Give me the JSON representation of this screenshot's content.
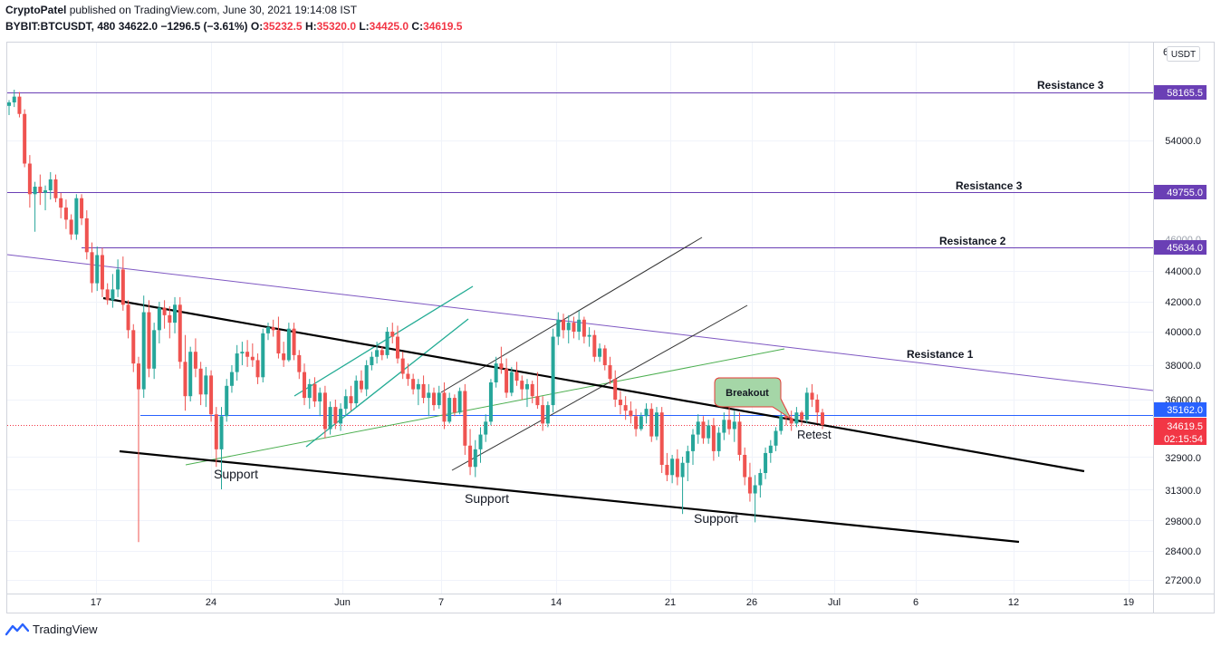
{
  "header": {
    "author": "CryptoPatel",
    "published_text": "published on TradingView.com, June 30, 2021 19:14:08 IST",
    "symbol": "BYBIT:BTCUSDT, 480",
    "last_price": "34622.0",
    "change": "−1296.5 (−3.61%)",
    "open_label": "O:",
    "open": "35232.5",
    "high_label": "H:",
    "high": "35320.0",
    "low_label": "L:",
    "low": "34425.0",
    "close_label": "C:",
    "close": "34619.5"
  },
  "footer": {
    "brand": "TradingView"
  },
  "colors": {
    "up": "#26a69a",
    "down": "#ef5350",
    "purple": "#6a3fb5",
    "blue_line": "#2962ff",
    "red_price": "#f23645"
  },
  "chart_data": {
    "type": "candlestick",
    "currency_badge": "USDT",
    "y_ticks": [
      "54000.0",
      "44000.0",
      "42000.0",
      "40000.0",
      "38000.0",
      "36000.0",
      "32900.0",
      "31300.0",
      "29800.0",
      "28400.0",
      "27200.0"
    ],
    "y_ticks_partial": [
      "6",
      "46000.0"
    ],
    "x_ticks": [
      "17",
      "24",
      "Jun",
      "7",
      "14",
      "21",
      "26",
      "Jul",
      "6",
      "12",
      "19"
    ],
    "price_labels": [
      {
        "text": "58165.5",
        "kind": "purple"
      },
      {
        "text": "49755.0",
        "kind": "purple"
      },
      {
        "text": "45634.0",
        "kind": "purple"
      },
      {
        "text": "35162.0",
        "kind": "blue"
      },
      {
        "text": "34619.5",
        "kind": "red"
      },
      {
        "text": "02:15:54",
        "kind": "red"
      }
    ],
    "annotations": [
      "Resistance 3",
      "Resistance 3",
      "Resistance 2",
      "Resistance 1",
      "Support",
      "Support",
      "Support",
      "Retest",
      "Breakout"
    ],
    "horizontal_levels": [
      58165.5,
      49755.0,
      45634.0,
      35162.0,
      34619.5
    ],
    "candles": [
      [
        57000,
        57500,
        56200,
        57300
      ],
      [
        57300,
        58400,
        56900,
        57800
      ],
      [
        57800,
        58200,
        56000,
        56300
      ],
      [
        56300,
        56700,
        51800,
        52100
      ],
      [
        52100,
        52800,
        48600,
        49600
      ],
      [
        49600,
        50600,
        46800,
        50200
      ],
      [
        50200,
        51200,
        48800,
        49700
      ],
      [
        49700,
        50300,
        48400,
        49900
      ],
      [
        49900,
        51400,
        49200,
        50800
      ],
      [
        50800,
        51200,
        49000,
        49300
      ],
      [
        49300,
        49700,
        47800,
        48600
      ],
      [
        48600,
        49200,
        47000,
        47700
      ],
      [
        47700,
        48100,
        46200,
        46600
      ],
      [
        46600,
        49600,
        46200,
        49300
      ],
      [
        49300,
        49600,
        47300,
        47800
      ],
      [
        47800,
        48400,
        44800,
        45300
      ],
      [
        45300,
        46000,
        42600,
        43200
      ],
      [
        43200,
        45700,
        42700,
        45100
      ],
      [
        45100,
        45600,
        42300,
        42800
      ],
      [
        42800,
        43200,
        41800,
        42100
      ],
      [
        42100,
        43800,
        41600,
        42800
      ],
      [
        42800,
        44800,
        42300,
        44100
      ],
      [
        44100,
        45000,
        41400,
        41800
      ],
      [
        41800,
        42100,
        39600,
        40100
      ],
      [
        40100,
        40500,
        37600,
        38100
      ],
      [
        38100,
        38500,
        28800,
        36600
      ],
      [
        36600,
        42400,
        36100,
        41300
      ],
      [
        41300,
        42100,
        37300,
        37800
      ],
      [
        37800,
        40600,
        37200,
        40100
      ],
      [
        40100,
        42000,
        39300,
        41600
      ],
      [
        41600,
        42100,
        40200,
        41100
      ],
      [
        41100,
        41700,
        39600,
        40600
      ],
      [
        40600,
        42300,
        39900,
        41800
      ],
      [
        41800,
        42300,
        37800,
        38200
      ],
      [
        38200,
        39800,
        35400,
        36200
      ],
      [
        36200,
        39100,
        35900,
        38800
      ],
      [
        38800,
        39600,
        37300,
        37800
      ],
      [
        37800,
        38200,
        35700,
        36300
      ],
      [
        36300,
        37900,
        35600,
        37400
      ],
      [
        37400,
        37700,
        34800,
        35200
      ],
      [
        35200,
        35600,
        32400,
        33300
      ],
      [
        33300,
        35600,
        31300,
        35100
      ],
      [
        35100,
        37200,
        34800,
        36800
      ],
      [
        36800,
        38000,
        36400,
        37600
      ],
      [
        37600,
        39200,
        37100,
        38700
      ],
      [
        38700,
        39400,
        38000,
        38800
      ],
      [
        38800,
        39500,
        37900,
        38500
      ],
      [
        38500,
        39300,
        37900,
        38300
      ],
      [
        38300,
        38700,
        36900,
        37300
      ],
      [
        37300,
        40200,
        37000,
        39900
      ],
      [
        39900,
        40600,
        39500,
        40300
      ],
      [
        40300,
        40800,
        39700,
        40100
      ],
      [
        40100,
        41000,
        38400,
        38700
      ],
      [
        38700,
        39400,
        37900,
        38300
      ],
      [
        38300,
        40600,
        38200,
        40200
      ],
      [
        40200,
        40600,
        38300,
        38600
      ],
      [
        38600,
        38900,
        37200,
        37600
      ],
      [
        37600,
        38100,
        35700,
        36100
      ],
      [
        36100,
        37200,
        35500,
        36900
      ],
      [
        36900,
        37300,
        35600,
        35900
      ],
      [
        35900,
        36700,
        35100,
        36400
      ],
      [
        36400,
        36800,
        33900,
        34400
      ],
      [
        34400,
        35900,
        34100,
        35600
      ],
      [
        35600,
        36000,
        34400,
        34700
      ],
      [
        34700,
        35800,
        34300,
        35500
      ],
      [
        35500,
        36600,
        35100,
        36200
      ],
      [
        36200,
        36800,
        35400,
        35800
      ],
      [
        35800,
        37400,
        35600,
        37100
      ],
      [
        37100,
        37700,
        36400,
        36600
      ],
      [
        36600,
        38300,
        36200,
        38000
      ],
      [
        38000,
        38800,
        37700,
        38500
      ],
      [
        38500,
        39400,
        38100,
        38900
      ],
      [
        38900,
        39100,
        38300,
        38600
      ],
      [
        38600,
        40300,
        38400,
        40000
      ],
      [
        40000,
        40600,
        39300,
        39700
      ],
      [
        39700,
        40400,
        38100,
        38400
      ],
      [
        38400,
        38800,
        37200,
        37500
      ],
      [
        37500,
        38100,
        36800,
        37200
      ],
      [
        37200,
        37500,
        36300,
        36600
      ],
      [
        36600,
        37200,
        35700,
        36900
      ],
      [
        36900,
        37400,
        35800,
        36100
      ],
      [
        36100,
        36900,
        35100,
        36400
      ],
      [
        36400,
        36700,
        35400,
        35700
      ],
      [
        35700,
        36800,
        35500,
        36400
      ],
      [
        36400,
        37000,
        34400,
        34800
      ],
      [
        34800,
        36400,
        34700,
        36100
      ],
      [
        36100,
        36300,
        35100,
        35300
      ],
      [
        35300,
        36700,
        35200,
        36500
      ],
      [
        36500,
        36900,
        33000,
        33500
      ],
      [
        33500,
        34400,
        32000,
        32400
      ],
      [
        32400,
        33800,
        31900,
        33300
      ],
      [
        33300,
        34500,
        32600,
        34100
      ],
      [
        34100,
        35200,
        33700,
        34800
      ],
      [
        34800,
        37200,
        34600,
        37000
      ],
      [
        37000,
        38500,
        36700,
        38100
      ],
      [
        38100,
        39100,
        37500,
        37800
      ],
      [
        37800,
        38400,
        36100,
        36400
      ],
      [
        36400,
        37900,
        36200,
        37600
      ],
      [
        37600,
        38200,
        36800,
        37100
      ],
      [
        37100,
        37400,
        36000,
        36600
      ],
      [
        36600,
        37200,
        35600,
        36900
      ],
      [
        36900,
        37100,
        35800,
        36200
      ],
      [
        36200,
        37600,
        35500,
        35700
      ],
      [
        35700,
        36200,
        34300,
        34700
      ],
      [
        34700,
        35900,
        34500,
        35700
      ],
      [
        35700,
        40200,
        35300,
        39700
      ],
      [
        39700,
        41300,
        39200,
        40800
      ],
      [
        40800,
        41200,
        39600,
        40100
      ],
      [
        40100,
        41100,
        39300,
        40600
      ],
      [
        40600,
        41000,
        39600,
        40000
      ],
      [
        40000,
        41400,
        39500,
        40800
      ],
      [
        40800,
        41000,
        39300,
        39700
      ],
      [
        39700,
        40300,
        39100,
        39800
      ],
      [
        39800,
        40100,
        38200,
        38500
      ],
      [
        38500,
        39300,
        38200,
        39000
      ],
      [
        39000,
        39200,
        37700,
        38000
      ],
      [
        38000,
        38500,
        36900,
        37200
      ],
      [
        37200,
        37700,
        35600,
        36000
      ],
      [
        36000,
        36500,
        35200,
        35700
      ],
      [
        35700,
        36200,
        34900,
        35400
      ],
      [
        35400,
        35900,
        34700,
        35100
      ],
      [
        35100,
        35500,
        34000,
        34400
      ],
      [
        34400,
        35300,
        34300,
        35100
      ],
      [
        35100,
        35800,
        34700,
        35500
      ],
      [
        35500,
        35800,
        33700,
        34000
      ],
      [
        34000,
        35600,
        33800,
        35300
      ],
      [
        35300,
        35600,
        32100,
        32500
      ],
      [
        32500,
        33100,
        31700,
        32000
      ],
      [
        32000,
        33000,
        31600,
        32800
      ],
      [
        32800,
        33300,
        31500,
        31900
      ],
      [
        31900,
        32900,
        30100,
        32600
      ],
      [
        32600,
        33500,
        31700,
        33200
      ],
      [
        33200,
        34400,
        32500,
        34100
      ],
      [
        34100,
        35200,
        33600,
        34800
      ],
      [
        34800,
        35100,
        33600,
        33900
      ],
      [
        33900,
        34900,
        33600,
        34600
      ],
      [
        34600,
        35000,
        32700,
        33200
      ],
      [
        33200,
        34500,
        32900,
        34200
      ],
      [
        34200,
        35300,
        33800,
        34900
      ],
      [
        34900,
        35800,
        34100,
        34400
      ],
      [
        34400,
        35400,
        33700,
        34800
      ],
      [
        34800,
        35300,
        32700,
        33000
      ],
      [
        33000,
        33400,
        31500,
        31900
      ],
      [
        31900,
        32600,
        30700,
        31100
      ],
      [
        31100,
        32000,
        29700,
        31500
      ],
      [
        31500,
        32300,
        30900,
        32100
      ],
      [
        32100,
        33400,
        31800,
        33100
      ],
      [
        33100,
        33800,
        32600,
        33500
      ],
      [
        33500,
        34500,
        33200,
        34300
      ],
      [
        34300,
        35400,
        34100,
        35100
      ],
      [
        35100,
        35500,
        34600,
        35000
      ],
      [
        35000,
        35400,
        34300,
        34700
      ],
      [
        34700,
        35600,
        34500,
        35300
      ],
      [
        35300,
        35400,
        34600,
        34900
      ],
      [
        34900,
        36700,
        34700,
        36400
      ],
      [
        36400,
        36900,
        35600,
        36000
      ],
      [
        36000,
        36300,
        34700,
        35300
      ],
      [
        35300,
        35500,
        34400,
        34620
      ]
    ]
  }
}
